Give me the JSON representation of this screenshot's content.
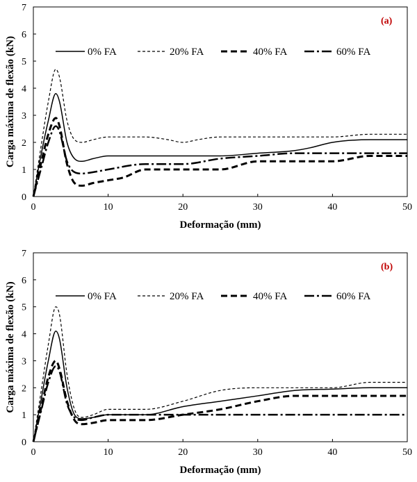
{
  "chart_data": [
    {
      "type": "line",
      "panel_label": "(a)",
      "xlabel": "Deformação (mm)",
      "ylabel": "Carga máxima de flexão (kN)",
      "xlim": [
        0,
        50
      ],
      "ylim": [
        0,
        7
      ],
      "xticks": [
        0,
        10,
        20,
        30,
        40,
        50
      ],
      "yticks": [
        0,
        1,
        2,
        3,
        4,
        5,
        6,
        7
      ],
      "legend_position": "top",
      "series": [
        {
          "name": "0% FA",
          "style": "solid",
          "points": [
            [
              0,
              0
            ],
            [
              1,
              1.5
            ],
            [
              2,
              2.8
            ],
            [
              3,
              3.8
            ],
            [
              3.5,
              3.5
            ],
            [
              4.5,
              2
            ],
            [
              5.5,
              1.4
            ],
            [
              6.5,
              1.3
            ],
            [
              8,
              1.4
            ],
            [
              10,
              1.5
            ],
            [
              15,
              1.5
            ],
            [
              20,
              1.5
            ],
            [
              25,
              1.5
            ],
            [
              30,
              1.6
            ],
            [
              35,
              1.7
            ],
            [
              37,
              1.8
            ],
            [
              40,
              2.0
            ],
            [
              45,
              2.1
            ],
            [
              50,
              2.1
            ]
          ]
        },
        {
          "name": "20% FA",
          "style": "dashed",
          "points": [
            [
              0,
              0
            ],
            [
              1,
              1.8
            ],
            [
              2,
              3.5
            ],
            [
              3,
              4.7
            ],
            [
              3.5,
              4.4
            ],
            [
              4.5,
              2.8
            ],
            [
              5.5,
              2.1
            ],
            [
              6.5,
              2.0
            ],
            [
              8,
              2.1
            ],
            [
              10,
              2.2
            ],
            [
              15,
              2.2
            ],
            [
              18,
              2.1
            ],
            [
              20,
              2.0
            ],
            [
              22,
              2.1
            ],
            [
              25,
              2.2
            ],
            [
              30,
              2.2
            ],
            [
              35,
              2.2
            ],
            [
              40,
              2.2
            ],
            [
              45,
              2.3
            ],
            [
              50,
              2.3
            ]
          ]
        },
        {
          "name": "40% FA",
          "style": "bold-dashed",
          "points": [
            [
              0,
              0
            ],
            [
              1,
              1.2
            ],
            [
              2,
              2.3
            ],
            [
              3,
              2.9
            ],
            [
              3.5,
              2.6
            ],
            [
              4.5,
              1.2
            ],
            [
              5.5,
              0.5
            ],
            [
              6.5,
              0.4
            ],
            [
              8,
              0.5
            ],
            [
              10,
              0.6
            ],
            [
              12,
              0.7
            ],
            [
              15,
              1.0
            ],
            [
              20,
              1.0
            ],
            [
              25,
              1.0
            ],
            [
              30,
              1.3
            ],
            [
              35,
              1.3
            ],
            [
              40,
              1.3
            ],
            [
              45,
              1.5
            ],
            [
              50,
              1.5
            ]
          ]
        },
        {
          "name": "60% FA",
          "style": "dash-dot",
          "points": [
            [
              0,
              0
            ],
            [
              1,
              1.0
            ],
            [
              2,
              2.0
            ],
            [
              3,
              2.6
            ],
            [
              3.5,
              2.4
            ],
            [
              4.5,
              1.3
            ],
            [
              5.5,
              0.9
            ],
            [
              6.5,
              0.85
            ],
            [
              8,
              0.9
            ],
            [
              10,
              1.0
            ],
            [
              15,
              1.2
            ],
            [
              20,
              1.2
            ],
            [
              25,
              1.4
            ],
            [
              30,
              1.5
            ],
            [
              35,
              1.6
            ],
            [
              40,
              1.6
            ],
            [
              45,
              1.6
            ],
            [
              50,
              1.6
            ]
          ]
        }
      ]
    },
    {
      "type": "line",
      "panel_label": "(b)",
      "xlabel": "Deformação (mm)",
      "ylabel": "Carga máxima de flexão (kN)",
      "xlim": [
        0,
        50
      ],
      "ylim": [
        0,
        7
      ],
      "xticks": [
        0,
        10,
        20,
        30,
        40,
        50
      ],
      "yticks": [
        0,
        1,
        2,
        3,
        4,
        5,
        6,
        7
      ],
      "legend_position": "top",
      "series": [
        {
          "name": "0% FA",
          "style": "solid",
          "points": [
            [
              0,
              0
            ],
            [
              1,
              1.5
            ],
            [
              2,
              3.0
            ],
            [
              3,
              4.1
            ],
            [
              3.5,
              3.8
            ],
            [
              4.5,
              2.0
            ],
            [
              5.5,
              1.0
            ],
            [
              6.5,
              0.85
            ],
            [
              8,
              0.9
            ],
            [
              10,
              1.0
            ],
            [
              15,
              1.0
            ],
            [
              20,
              1.3
            ],
            [
              25,
              1.5
            ],
            [
              30,
              1.7
            ],
            [
              35,
              1.9
            ],
            [
              40,
              1.95
            ],
            [
              45,
              2.0
            ],
            [
              50,
              2.0
            ]
          ]
        },
        {
          "name": "20% FA",
          "style": "dashed",
          "points": [
            [
              0,
              0
            ],
            [
              1,
              1.8
            ],
            [
              2,
              3.6
            ],
            [
              3,
              5.0
            ],
            [
              3.5,
              4.7
            ],
            [
              4.5,
              2.5
            ],
            [
              5.5,
              1.2
            ],
            [
              6.5,
              0.9
            ],
            [
              8,
              1.0
            ],
            [
              10,
              1.2
            ],
            [
              15,
              1.2
            ],
            [
              20,
              1.5
            ],
            [
              25,
              1.9
            ],
            [
              30,
              2.0
            ],
            [
              35,
              2.0
            ],
            [
              40,
              2.0
            ],
            [
              45,
              2.2
            ],
            [
              50,
              2.2
            ]
          ]
        },
        {
          "name": "40% FA",
          "style": "bold-dashed",
          "points": [
            [
              0,
              0
            ],
            [
              1,
              1.2
            ],
            [
              2,
              2.4
            ],
            [
              3,
              3.0
            ],
            [
              3.5,
              2.7
            ],
            [
              4.5,
              1.5
            ],
            [
              5.5,
              0.8
            ],
            [
              6.5,
              0.65
            ],
            [
              8,
              0.7
            ],
            [
              10,
              0.8
            ],
            [
              15,
              0.8
            ],
            [
              20,
              1.0
            ],
            [
              25,
              1.2
            ],
            [
              30,
              1.5
            ],
            [
              35,
              1.7
            ],
            [
              40,
              1.7
            ],
            [
              45,
              1.7
            ],
            [
              50,
              1.7
            ]
          ]
        },
        {
          "name": "60% FA",
          "style": "dash-dot",
          "points": [
            [
              0,
              0
            ],
            [
              1,
              1.1
            ],
            [
              2,
              2.2
            ],
            [
              3,
              2.8
            ],
            [
              3.5,
              2.6
            ],
            [
              4.5,
              1.4
            ],
            [
              5.5,
              0.9
            ],
            [
              6.5,
              0.8
            ],
            [
              8,
              0.9
            ],
            [
              10,
              1.0
            ],
            [
              15,
              1.0
            ],
            [
              20,
              1.0
            ],
            [
              25,
              1.0
            ],
            [
              30,
              1.0
            ],
            [
              35,
              1.0
            ],
            [
              40,
              1.0
            ],
            [
              45,
              1.0
            ],
            [
              50,
              1.0
            ]
          ]
        }
      ]
    }
  ]
}
